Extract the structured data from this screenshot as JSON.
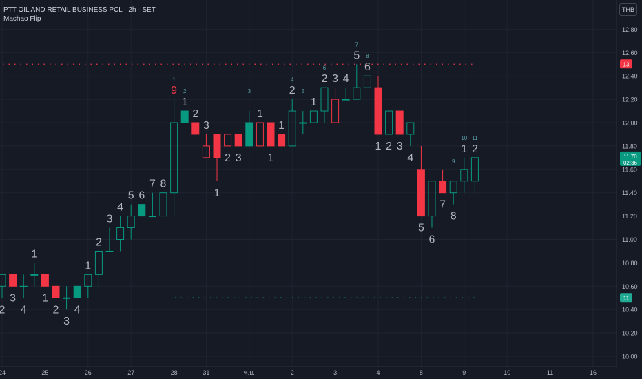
{
  "header": {
    "symbol_line": "PTT OIL AND RETAIL BUSINESS PCL · 2h · SET",
    "indicator_name": "Machao Flip"
  },
  "currency_label": "THB",
  "price_badge": {
    "value": "11.70",
    "countdown": "02:36",
    "color": "#089981"
  },
  "colors": {
    "background": "#161a25",
    "grid": "#1f2430",
    "up_body": "#089981",
    "down_body": "#f23645",
    "hollow_up": "#089981",
    "hollow_down": "#f23645",
    "count_text": "#b2b5be",
    "count_setup": "#f23645",
    "small_count": "#5b9ea6",
    "resistance": "#f23645",
    "support": "#22ab94"
  },
  "chart_data": {
    "type": "candlestick",
    "ylim": [
      10.0,
      12.95
    ],
    "y_ticks": [
      "10.00",
      "10.20",
      "10.40",
      "10.60",
      "10.80",
      "11.00",
      "11.20",
      "11.40",
      "11.60",
      "11.80",
      "12.00",
      "12.20",
      "12.40",
      "12.60",
      "12.80"
    ],
    "x_ticks": [
      {
        "label": "24",
        "bar": 0
      },
      {
        "label": "25",
        "bar": 4
      },
      {
        "label": "26",
        "bar": 8
      },
      {
        "label": "27",
        "bar": 12
      },
      {
        "label": "28",
        "bar": 16
      },
      {
        "label": "31",
        "bar": 19
      },
      {
        "label": "พ.ย.",
        "bar": 23
      },
      {
        "label": "2",
        "bar": 27
      },
      {
        "label": "3",
        "bar": 31
      },
      {
        "label": "4",
        "bar": 35
      },
      {
        "label": "8",
        "bar": 39
      },
      {
        "label": "9",
        "bar": 43
      },
      {
        "label": "10",
        "bar": 47
      },
      {
        "label": "11",
        "bar": 51
      },
      {
        "label": "16",
        "bar": 55
      }
    ],
    "bar_count_visible": 60,
    "candles": [
      {
        "o": 10.6,
        "h": 10.7,
        "l": 10.5,
        "c": 10.7,
        "fill": false
      },
      {
        "o": 10.7,
        "h": 10.7,
        "l": 10.6,
        "c": 10.6,
        "fill": true
      },
      {
        "o": 10.6,
        "h": 10.7,
        "l": 10.5,
        "c": 10.6,
        "fill": false
      },
      {
        "o": 10.7,
        "h": 10.8,
        "l": 10.6,
        "c": 10.7,
        "fill": false
      },
      {
        "o": 10.7,
        "h": 10.7,
        "l": 10.6,
        "c": 10.6,
        "fill": true
      },
      {
        "o": 10.6,
        "h": 10.6,
        "l": 10.5,
        "c": 10.5,
        "fill": true
      },
      {
        "o": 10.5,
        "h": 10.6,
        "l": 10.4,
        "c": 10.5,
        "fill": false
      },
      {
        "o": 10.5,
        "h": 10.6,
        "l": 10.5,
        "c": 10.6,
        "fill": true
      },
      {
        "o": 10.6,
        "h": 10.7,
        "l": 10.5,
        "c": 10.7,
        "fill": false
      },
      {
        "o": 10.7,
        "h": 10.9,
        "l": 10.6,
        "c": 10.9,
        "fill": false
      },
      {
        "o": 10.9,
        "h": 11.1,
        "l": 10.9,
        "c": 10.9,
        "fill": false
      },
      {
        "o": 11.0,
        "h": 11.2,
        "l": 10.9,
        "c": 11.1,
        "fill": false
      },
      {
        "o": 11.1,
        "h": 11.3,
        "l": 11.0,
        "c": 11.2,
        "fill": false
      },
      {
        "o": 11.2,
        "h": 11.3,
        "l": 11.2,
        "c": 11.3,
        "fill": true
      },
      {
        "o": 11.2,
        "h": 11.4,
        "l": 11.2,
        "c": 11.2,
        "fill": false
      },
      {
        "o": 11.2,
        "h": 11.4,
        "l": 11.2,
        "c": 11.4,
        "fill": false
      },
      {
        "o": 11.4,
        "h": 12.2,
        "l": 11.2,
        "c": 12.0,
        "fill": false
      },
      {
        "o": 12.0,
        "h": 12.1,
        "l": 12.0,
        "c": 12.1,
        "fill": true
      },
      {
        "o": 12.0,
        "h": 12.0,
        "l": 11.9,
        "c": 11.9,
        "fill": true
      },
      {
        "o": 11.8,
        "h": 11.9,
        "l": 11.7,
        "c": 11.7,
        "fill": false
      },
      {
        "o": 11.9,
        "h": 11.9,
        "l": 11.5,
        "c": 11.7,
        "fill": true
      },
      {
        "o": 11.9,
        "h": 11.9,
        "l": 11.8,
        "c": 11.8,
        "fill": false
      },
      {
        "o": 11.9,
        "h": 11.9,
        "l": 11.8,
        "c": 11.8,
        "fill": true
      },
      {
        "o": 11.8,
        "h": 12.1,
        "l": 11.8,
        "c": 12.0,
        "fill": true
      },
      {
        "o": 12.0,
        "h": 12.0,
        "l": 11.8,
        "c": 11.8,
        "fill": false
      },
      {
        "o": 12.0,
        "h": 12.0,
        "l": 11.8,
        "c": 11.8,
        "fill": true
      },
      {
        "o": 11.9,
        "h": 11.9,
        "l": 11.8,
        "c": 11.8,
        "fill": true
      },
      {
        "o": 11.8,
        "h": 12.2,
        "l": 11.8,
        "c": 12.1,
        "fill": false
      },
      {
        "o": 12.0,
        "h": 12.1,
        "l": 11.9,
        "c": 12.0,
        "fill": false
      },
      {
        "o": 12.0,
        "h": 12.1,
        "l": 12.0,
        "c": 12.1,
        "fill": false
      },
      {
        "o": 12.1,
        "h": 12.3,
        "l": 12.0,
        "c": 12.3,
        "fill": false
      },
      {
        "o": 12.2,
        "h": 12.3,
        "l": 12.0,
        "c": 12.0,
        "fill": false
      },
      {
        "o": 12.2,
        "h": 12.3,
        "l": 12.2,
        "c": 12.2,
        "fill": false
      },
      {
        "o": 12.2,
        "h": 12.5,
        "l": 12.2,
        "c": 12.3,
        "fill": false
      },
      {
        "o": 12.3,
        "h": 12.4,
        "l": 12.3,
        "c": 12.4,
        "fill": false
      },
      {
        "o": 12.3,
        "h": 12.4,
        "l": 11.9,
        "c": 11.9,
        "fill": true
      },
      {
        "o": 11.9,
        "h": 12.1,
        "l": 11.9,
        "c": 12.1,
        "fill": false
      },
      {
        "o": 12.1,
        "h": 12.1,
        "l": 11.9,
        "c": 11.9,
        "fill": true
      },
      {
        "o": 11.9,
        "h": 12.0,
        "l": 11.8,
        "c": 12.0,
        "fill": false
      },
      {
        "o": 11.6,
        "h": 11.8,
        "l": 11.2,
        "c": 11.2,
        "fill": true
      },
      {
        "o": 11.2,
        "h": 11.5,
        "l": 11.1,
        "c": 11.5,
        "fill": false
      },
      {
        "o": 11.5,
        "h": 11.6,
        "l": 11.4,
        "c": 11.4,
        "fill": true
      },
      {
        "o": 11.4,
        "h": 11.5,
        "l": 11.3,
        "c": 11.5,
        "fill": false
      },
      {
        "o": 11.5,
        "h": 11.7,
        "l": 11.4,
        "c": 11.6,
        "fill": false
      },
      {
        "o": 11.5,
        "h": 11.7,
        "l": 11.4,
        "c": 11.7,
        "fill": false
      }
    ],
    "resistance_level": 12.5,
    "resistance_label": "13",
    "support_level": 10.5,
    "support_label": "11",
    "counts": [
      {
        "bar": 0,
        "text": "2",
        "size": "big",
        "pos": "below",
        "color": "count_text"
      },
      {
        "bar": 1,
        "text": "3",
        "size": "big",
        "pos": "below",
        "color": "count_text"
      },
      {
        "bar": 2,
        "text": "4",
        "size": "big",
        "pos": "below",
        "color": "count_text"
      },
      {
        "bar": 3,
        "text": "1",
        "size": "big",
        "pos": "above",
        "color": "count_text"
      },
      {
        "bar": 4,
        "text": "1",
        "size": "big",
        "pos": "below",
        "color": "count_text"
      },
      {
        "bar": 5,
        "text": "2",
        "size": "big",
        "pos": "below",
        "color": "count_text"
      },
      {
        "bar": 6,
        "text": "3",
        "size": "big",
        "pos": "below",
        "color": "count_text"
      },
      {
        "bar": 7,
        "text": "4",
        "size": "big",
        "pos": "below",
        "color": "count_text"
      },
      {
        "bar": 8,
        "text": "1",
        "size": "big",
        "pos": "above",
        "color": "count_text"
      },
      {
        "bar": 9,
        "text": "2",
        "size": "big",
        "pos": "above",
        "color": "count_text"
      },
      {
        "bar": 10,
        "text": "3",
        "size": "big",
        "pos": "above",
        "color": "count_text"
      },
      {
        "bar": 11,
        "text": "4",
        "size": "big",
        "pos": "above",
        "color": "count_text"
      },
      {
        "bar": 12,
        "text": "5",
        "size": "big",
        "pos": "above",
        "color": "count_text"
      },
      {
        "bar": 13,
        "text": "6",
        "size": "big",
        "pos": "above",
        "color": "count_text"
      },
      {
        "bar": 14,
        "text": "7",
        "size": "big",
        "pos": "above",
        "color": "count_text"
      },
      {
        "bar": 15,
        "text": "8",
        "size": "big",
        "pos": "above",
        "color": "count_text"
      },
      {
        "bar": 16,
        "text": "9",
        "size": "big",
        "pos": "above",
        "color": "count_setup"
      },
      {
        "bar": 16,
        "text": "1",
        "size": "small",
        "pos": "above2",
        "color": "small_count"
      },
      {
        "bar": 17,
        "text": "2",
        "size": "small",
        "pos": "above2",
        "color": "small_count"
      },
      {
        "bar": 17,
        "text": "1",
        "size": "big",
        "pos": "above",
        "color": "count_text"
      },
      {
        "bar": 18,
        "text": "2",
        "size": "big",
        "pos": "above",
        "color": "count_text"
      },
      {
        "bar": 19,
        "text": "3",
        "size": "big",
        "pos": "above",
        "color": "count_text"
      },
      {
        "bar": 20,
        "text": "1",
        "size": "big",
        "pos": "below",
        "color": "count_text"
      },
      {
        "bar": 21,
        "text": "2",
        "size": "big",
        "pos": "below",
        "color": "count_text"
      },
      {
        "bar": 22,
        "text": "3",
        "size": "big",
        "pos": "below",
        "color": "count_text"
      },
      {
        "bar": 23,
        "text": "3",
        "size": "small",
        "pos": "above2",
        "color": "small_count"
      },
      {
        "bar": 24,
        "text": "1",
        "size": "big",
        "pos": "above",
        "color": "count_text"
      },
      {
        "bar": 25,
        "text": "1",
        "size": "big",
        "pos": "below",
        "color": "count_text"
      },
      {
        "bar": 26,
        "text": "1",
        "size": "big",
        "pos": "above",
        "color": "count_text"
      },
      {
        "bar": 27,
        "text": "4",
        "size": "small",
        "pos": "above2",
        "color": "small_count"
      },
      {
        "bar": 27,
        "text": "2",
        "size": "big",
        "pos": "above",
        "color": "count_text"
      },
      {
        "bar": 28,
        "text": "5",
        "size": "small",
        "pos": "above2",
        "color": "small_count"
      },
      {
        "bar": 29,
        "text": "1",
        "size": "big",
        "pos": "above",
        "color": "count_text"
      },
      {
        "bar": 30,
        "text": "2",
        "size": "big",
        "pos": "above",
        "color": "count_text"
      },
      {
        "bar": 30,
        "text": "6",
        "size": "small",
        "pos": "above2",
        "color": "small_count"
      },
      {
        "bar": 31,
        "text": "3",
        "size": "big",
        "pos": "above",
        "color": "count_text"
      },
      {
        "bar": 32,
        "text": "4",
        "size": "big",
        "pos": "above",
        "color": "count_text"
      },
      {
        "bar": 33,
        "text": "5",
        "size": "big",
        "pos": "above",
        "color": "count_text"
      },
      {
        "bar": 33,
        "text": "7",
        "size": "small",
        "pos": "above2",
        "color": "small_count"
      },
      {
        "bar": 34,
        "text": "6",
        "size": "big",
        "pos": "above",
        "color": "count_text"
      },
      {
        "bar": 34,
        "text": "8",
        "size": "small",
        "pos": "above2",
        "color": "small_count"
      },
      {
        "bar": 35,
        "text": "1",
        "size": "big",
        "pos": "below",
        "color": "count_text"
      },
      {
        "bar": 36,
        "text": "2",
        "size": "big",
        "pos": "below",
        "color": "count_text"
      },
      {
        "bar": 37,
        "text": "3",
        "size": "big",
        "pos": "below",
        "color": "count_text"
      },
      {
        "bar": 38,
        "text": "4",
        "size": "big",
        "pos": "below",
        "color": "count_text"
      },
      {
        "bar": 39,
        "text": "5",
        "size": "big",
        "pos": "below",
        "color": "count_text"
      },
      {
        "bar": 40,
        "text": "6",
        "size": "big",
        "pos": "below",
        "color": "count_text"
      },
      {
        "bar": 41,
        "text": "7",
        "size": "big",
        "pos": "below",
        "color": "count_text"
      },
      {
        "bar": 42,
        "text": "8",
        "size": "big",
        "pos": "below",
        "color": "count_text"
      },
      {
        "bar": 42,
        "text": "9",
        "size": "small",
        "pos": "above2",
        "color": "small_count"
      },
      {
        "bar": 43,
        "text": "1",
        "size": "big",
        "pos": "above",
        "color": "count_text"
      },
      {
        "bar": 43,
        "text": "10",
        "size": "small",
        "pos": "above2",
        "color": "small_count"
      },
      {
        "bar": 44,
        "text": "2",
        "size": "big",
        "pos": "above",
        "color": "count_text"
      },
      {
        "bar": 44,
        "text": "11",
        "size": "small",
        "pos": "above2",
        "color": "small_count"
      }
    ]
  }
}
